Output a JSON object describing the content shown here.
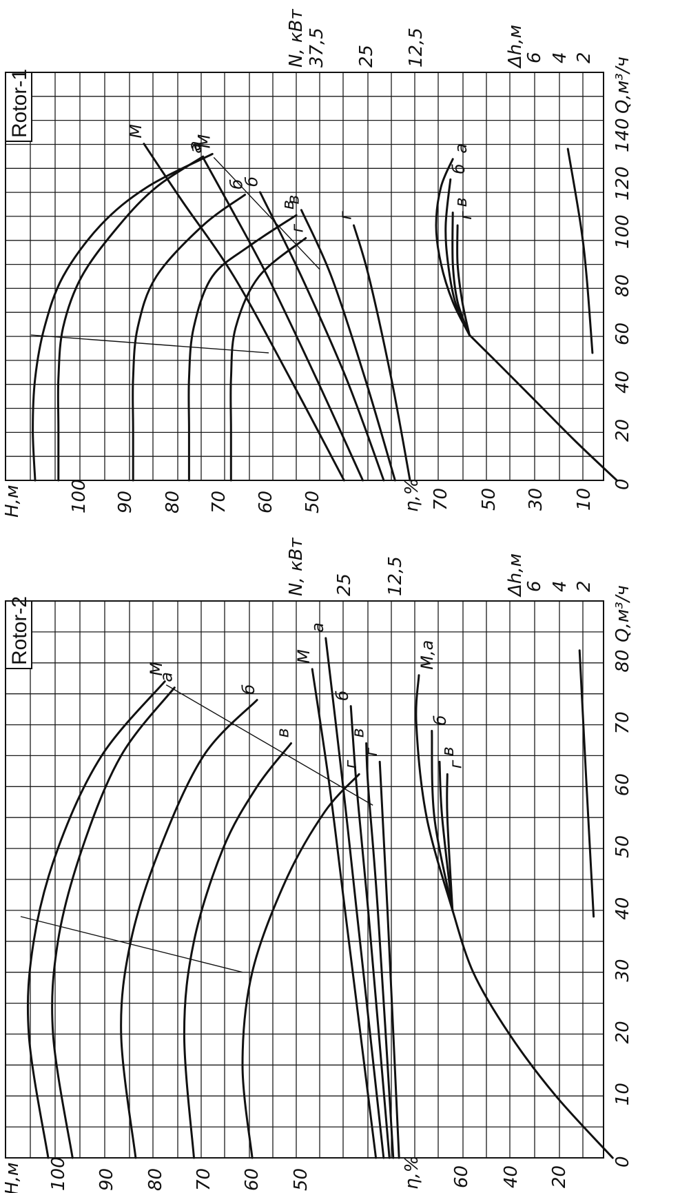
{
  "chart_data": [
    {
      "type": "line",
      "title": "Rotor-1",
      "x_axis": {
        "label": "Q,м³/ч",
        "ticks": [
          "0",
          "20",
          "40",
          "60",
          "80",
          "100",
          "120",
          "140"
        ],
        "range": [
          0,
          160
        ]
      },
      "head_axis": {
        "label": "Н,м",
        "ticks": [
          "100",
          "90",
          "80",
          "70",
          "60",
          "50"
        ]
      },
      "power_axis": {
        "label": "N, кВт",
        "ticks": [
          "37,5",
          "25",
          "12,5"
        ]
      },
      "eff_axis": {
        "label": "η,%",
        "ticks": [
          "70",
          "50",
          "30",
          "10"
        ]
      },
      "npsh_axis": {
        "label": "Δh,м",
        "ticks": [
          "6",
          "4",
          "2"
        ]
      },
      "head_curves": [
        {
          "name": "M",
          "q": [
            0,
            20,
            40,
            60,
            80,
            100,
            115,
            128
          ],
          "h": [
            105,
            105.5,
            105,
            103,
            99,
            91,
            81,
            67
          ]
        },
        {
          "name": "а",
          "q": [
            0,
            20,
            40,
            60,
            80,
            100,
            115,
            127
          ],
          "h": [
            100,
            100,
            100,
            99,
            95,
            87,
            79,
            69
          ]
        },
        {
          "name": "б",
          "q": [
            0,
            20,
            40,
            60,
            80,
            100,
            112
          ],
          "h": [
            84,
            84,
            84,
            83,
            79,
            69,
            60
          ]
        },
        {
          "name": "в",
          "q": [
            0,
            20,
            40,
            60,
            80,
            92,
            104
          ],
          "h": [
            72,
            72,
            72,
            71,
            67,
            59,
            49
          ]
        },
        {
          "name": "г",
          "q": [
            0,
            20,
            40,
            60,
            80,
            95
          ],
          "h": [
            63,
            63,
            63,
            62,
            57,
            47
          ]
        }
      ],
      "power_curves": [
        {
          "name": "M",
          "q": [
            0,
            40,
            80,
            110,
            132
          ],
          "n": [
            22.3,
            29.5,
            37,
            44,
            49
          ]
        },
        {
          "name": "а",
          "q": [
            0,
            40,
            80,
            110,
            126
          ],
          "n": [
            19.8,
            26,
            32.5,
            38,
            41
          ]
        },
        {
          "name": "б",
          "q": [
            0,
            40,
            80,
            113
          ],
          "n": [
            17,
            22,
            28,
            33.5
          ]
        },
        {
          "name": "в",
          "q": [
            0,
            40,
            80,
            106
          ],
          "n": [
            15.5,
            19.5,
            24,
            28
          ]
        },
        {
          "name": "г",
          "q": [
            0,
            40,
            80,
            100
          ],
          "n": [
            13.5,
            16,
            19,
            21
          ]
        }
      ],
      "efficiency_curves": [
        {
          "name": "а",
          "q": [
            57,
            70,
            85,
            100,
            115,
            126
          ],
          "eff": [
            62,
            69,
            74,
            76,
            74,
            69
          ]
        },
        {
          "name": "б",
          "q": [
            57,
            70,
            85,
            100,
            118
          ],
          "eff": [
            62,
            68,
            71,
            72,
            70
          ]
        },
        {
          "name": "в",
          "q": [
            57,
            70,
            85,
            105
          ],
          "eff": [
            62,
            67,
            69,
            69
          ]
        },
        {
          "name": "г",
          "q": [
            57,
            70,
            85,
            100
          ],
          "eff": [
            62,
            65,
            67,
            67
          ]
        },
        {
          "name": "",
          "q": [
            0,
            15,
            30,
            45,
            57
          ],
          "eff": [
            0,
            17,
            33,
            49,
            62
          ]
        }
      ],
      "npsh_curve": {
        "q": [
          50,
          80,
          100,
          130
        ],
        "dh": [
          1.3,
          1.8,
          2.3,
          3.4
        ]
      },
      "curve_labels": [
        "М",
        "а",
        "б",
        "в",
        "г"
      ]
    },
    {
      "type": "line",
      "title": "Rotor-2",
      "x_axis": {
        "label": "Q,м³/ч",
        "ticks": [
          "0",
          "10",
          "20",
          "30",
          "40",
          "50",
          "60",
          "70",
          "80"
        ],
        "range": [
          0,
          90
        ]
      },
      "head_axis": {
        "label": "Н,м",
        "ticks": [
          "100",
          "90",
          "80",
          "70",
          "60",
          "50"
        ]
      },
      "power_axis": {
        "label": "N, кВт",
        "ticks": [
          "25",
          "12,5"
        ]
      },
      "eff_axis": {
        "label": "η,%",
        "ticks": [
          "60",
          "40",
          "20"
        ]
      },
      "npsh_axis": {
        "label": "Δh,м",
        "ticks": [
          "6",
          "4",
          "2"
        ]
      },
      "head_curves": [
        {
          "name": "M",
          "q": [
            0,
            20,
            35,
            50,
            65,
            77
          ],
          "h": [
            103,
            107,
            106,
            101,
            92,
            79
          ]
        },
        {
          "name": "а",
          "q": [
            0,
            20,
            35,
            50,
            65,
            76
          ],
          "h": [
            98,
            102,
            101,
            96,
            88,
            77
          ]
        },
        {
          "name": "б",
          "q": [
            0,
            20,
            35,
            50,
            65,
            74
          ],
          "h": [
            85,
            88,
            86,
            80,
            71,
            60
          ]
        },
        {
          "name": "в",
          "q": [
            0,
            20,
            35,
            50,
            60,
            67
          ],
          "h": [
            73,
            75,
            73,
            67,
            60,
            53
          ]
        },
        {
          "name": "г",
          "q": [
            0,
            15,
            30,
            45,
            56,
            62
          ],
          "h": [
            61,
            63,
            61,
            54,
            46,
            39
          ]
        }
      ],
      "power_curves": [
        {
          "name": "M",
          "q": [
            0,
            40,
            60,
            79
          ],
          "n": [
            16.5,
            24.5,
            28.5,
            33
          ]
        },
        {
          "name": "а",
          "q": [
            0,
            40,
            60,
            84
          ],
          "n": [
            14.5,
            21.5,
            25,
            29.5
          ]
        },
        {
          "name": "б",
          "q": [
            0,
            40,
            60,
            73
          ],
          "n": [
            13,
            18.5,
            21.5,
            23
          ]
        },
        {
          "name": "в",
          "q": [
            0,
            40,
            60,
            67
          ],
          "n": [
            12,
            16,
            18.5,
            19
          ]
        },
        {
          "name": "г",
          "q": [
            0,
            40,
            64
          ],
          "n": [
            10.5,
            13.5,
            15.5
          ]
        }
      ],
      "efficiency_curves": [
        {
          "name": "M,а",
          "q": [
            40,
            55,
            70,
            78
          ],
          "eff": [
            62,
            72,
            76,
            75
          ]
        },
        {
          "name": "б",
          "q": [
            40,
            55,
            69
          ],
          "eff": [
            62,
            69,
            70
          ]
        },
        {
          "name": "в",
          "q": [
            40,
            55,
            64
          ],
          "eff": [
            62,
            66,
            67
          ]
        },
        {
          "name": "г",
          "q": [
            40,
            55,
            62
          ],
          "eff": [
            62,
            64,
            64
          ]
        },
        {
          "name": "",
          "q": [
            0,
            10,
            20,
            30,
            40
          ],
          "eff": [
            0,
            22,
            40,
            54,
            62
          ]
        }
      ],
      "npsh_curve": {
        "q": [
          39,
          60,
          82
        ],
        "dh": [
          1.2,
          1.8,
          2.4
        ]
      },
      "curve_labels": [
        "М",
        "а",
        "б",
        "в",
        "г"
      ],
      "label_ma": "М,а"
    }
  ]
}
